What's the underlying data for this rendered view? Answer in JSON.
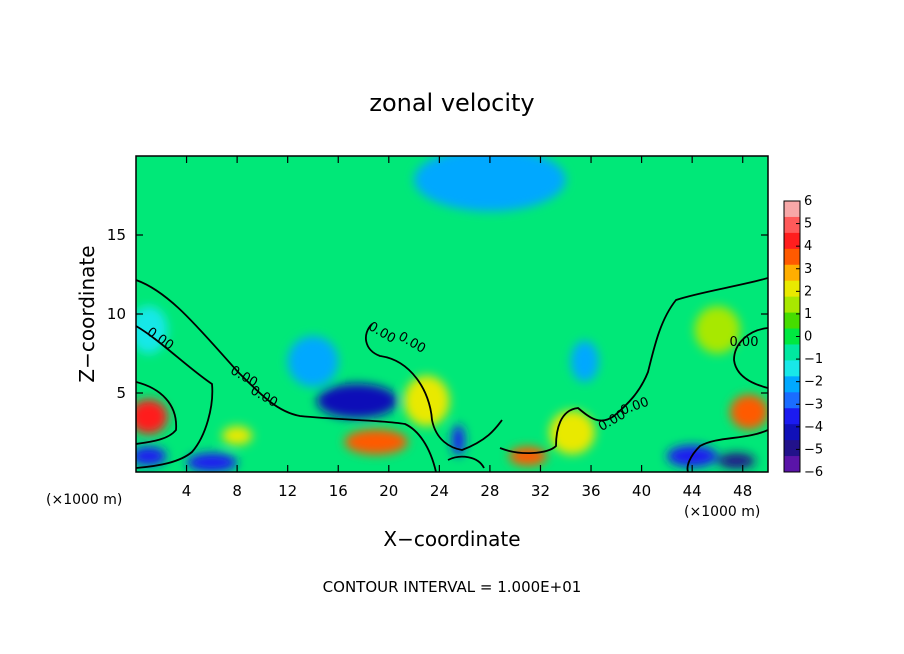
{
  "chart_data": {
    "type": "heatmap",
    "title": "zonal velocity",
    "xlabel": "X−coordinate",
    "ylabel": "Z−coordinate",
    "x_unit_left": "(×1000 m)",
    "x_unit_right": "(×1000 m)",
    "xlim": [
      0,
      50
    ],
    "ylim": [
      0,
      20
    ],
    "x_ticks": [
      4,
      8,
      12,
      16,
      20,
      24,
      28,
      32,
      36,
      40,
      44,
      48
    ],
    "x_tick_labels": [
      "4",
      "8",
      "12",
      "16",
      "20",
      "24",
      "28",
      "32",
      "36",
      "40",
      "44",
      "48"
    ],
    "y_ticks": [
      5,
      10,
      15
    ],
    "y_tick_labels": [
      "5",
      "10",
      "15"
    ],
    "colorbar": {
      "ticks": [
        6,
        5,
        4,
        3,
        2,
        1,
        0,
        -1,
        -2,
        -3,
        -4,
        -5,
        -6
      ],
      "tick_labels": [
        "6",
        "5",
        "4",
        "3",
        "2",
        "1",
        "0",
        "−1",
        "−2",
        "−3",
        "−4",
        "−5",
        "−6"
      ],
      "colors": [
        "#f7a8a8",
        "#ff5a5a",
        "#ff1e1e",
        "#ff5a00",
        "#ffae00",
        "#e9e900",
        "#a8e800",
        "#46dd00",
        "#00e840",
        "#00e8a0",
        "#18e8e8",
        "#00a8ff",
        "#1a6cff",
        "#1b1bf0",
        "#1010b8",
        "#22128a",
        "#5a14a8"
      ]
    },
    "contour_label": "0.00",
    "contour_label_count": 8,
    "footer": "CONTOUR INTERVAL = 1.000E+01",
    "features": [
      {
        "x": 17.5,
        "z": 4.5,
        "value": -4.5,
        "rx": 3.2,
        "rz": 1.1
      },
      {
        "x": 1.0,
        "z": 3.5,
        "value": 4.5,
        "rx": 1.5,
        "rz": 1.1
      },
      {
        "x": 48.5,
        "z": 3.8,
        "value": 4.0,
        "rx": 1.5,
        "rz": 1.1
      },
      {
        "x": 19.0,
        "z": 1.9,
        "value": 3.5,
        "rx": 2.5,
        "rz": 0.8
      },
      {
        "x": 8.0,
        "z": 2.3,
        "value": 2.5,
        "rx": 1.2,
        "rz": 0.6
      },
      {
        "x": 34.5,
        "z": 2.5,
        "value": 2.0,
        "rx": 1.8,
        "rz": 1.4
      },
      {
        "x": 23.0,
        "z": 4.5,
        "value": 2.0,
        "rx": 1.8,
        "rz": 1.6
      },
      {
        "x": 14.0,
        "z": 7.0,
        "value": -2.0,
        "rx": 2.0,
        "rz": 1.6
      },
      {
        "x": 35.5,
        "z": 7.0,
        "value": -2.0,
        "rx": 1.1,
        "rz": 1.3
      },
      {
        "x": 28.0,
        "z": 18.5,
        "value": -2.2,
        "rx": 6.0,
        "rz": 2.0
      },
      {
        "x": 1.0,
        "z": 9.0,
        "value": -1.5,
        "rx": 1.5,
        "rz": 1.5
      },
      {
        "x": 1.0,
        "z": 1.0,
        "value": -3.5,
        "rx": 1.4,
        "rz": 0.6
      },
      {
        "x": 6.0,
        "z": 0.6,
        "value": -4.0,
        "rx": 2.0,
        "rz": 0.6
      },
      {
        "x": 44.0,
        "z": 1.0,
        "value": -4.0,
        "rx": 2.0,
        "rz": 0.7
      },
      {
        "x": 47.5,
        "z": 0.7,
        "value": -5.5,
        "rx": 1.5,
        "rz": 0.5
      },
      {
        "x": 25.5,
        "z": 2.0,
        "value": -4.0,
        "rx": 0.5,
        "rz": 1.0
      },
      {
        "x": 31.0,
        "z": 1.0,
        "value": 3.5,
        "rx": 1.5,
        "rz": 0.6
      },
      {
        "x": 46.0,
        "z": 9.0,
        "value": 1.5,
        "rx": 1.8,
        "rz": 1.5
      }
    ]
  }
}
